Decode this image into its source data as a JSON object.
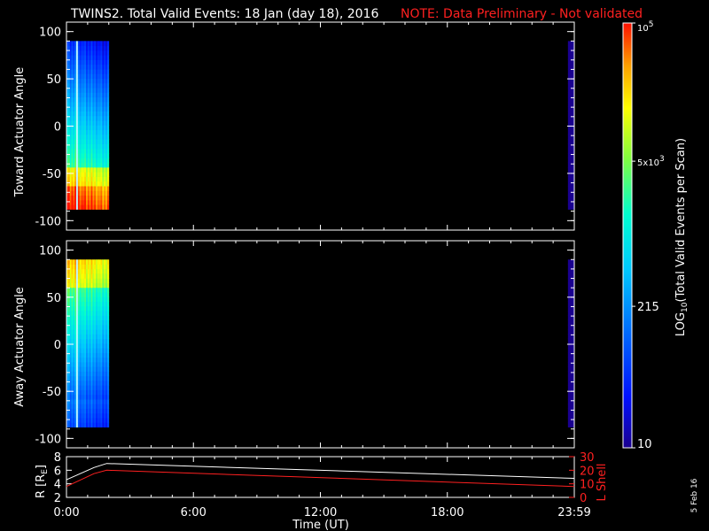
{
  "title": {
    "main": "TWINS2. Total Valid Events: 18 Jan (day  18), 2016",
    "note": "NOTE: Data Preliminary - Not validated"
  },
  "side_date": "5 Feb 16",
  "colors": {
    "note": "#ff2020",
    "r_line": "#ffffff",
    "lshell_line": "#ff2020"
  },
  "chart_data": [
    {
      "type": "heatmap",
      "ylabel": "Toward Actuator Angle",
      "ylim": [
        -110,
        110
      ],
      "yticks": [
        100,
        50,
        0,
        -50,
        -100
      ],
      "xlim": [
        0,
        24
      ],
      "data_time_ranges": [
        [
          0,
          2.0
        ],
        [
          23.7,
          24
        ]
      ],
      "angle_range": [
        -88,
        90
      ],
      "profile": "toward"
    },
    {
      "type": "heatmap",
      "ylabel": "Away Actuator Angle",
      "ylim": [
        -110,
        110
      ],
      "yticks": [
        100,
        50,
        0,
        -50,
        -100
      ],
      "xlim": [
        0,
        24
      ],
      "data_time_ranges": [
        [
          0,
          2.0
        ],
        [
          23.7,
          24
        ]
      ],
      "angle_range": [
        -88,
        90
      ],
      "profile": "away"
    },
    {
      "type": "line",
      "xlabel": "Time (UT)",
      "xticks": [
        "0:00",
        "6:00",
        "12:00",
        "18:00",
        "23:59"
      ],
      "xtick_values": [
        0,
        6,
        12,
        18,
        24
      ],
      "ylabel_left": "R [R",
      "ylabel_left_sub": "E",
      "ylabel_left_tail": "]",
      "ylim_left": [
        2,
        8
      ],
      "yticks_left": [
        8,
        6,
        4,
        2
      ],
      "ylabel_right": "L Shell",
      "ylim_right": [
        0,
        30
      ],
      "yticks_right": [
        30,
        20,
        10,
        0
      ],
      "series": [
        {
          "axis": "left",
          "x": [
            0,
            1.3,
            1.9,
            24
          ],
          "y": [
            4.6,
            6.4,
            7.0,
            4.8
          ]
        },
        {
          "axis": "left",
          "x": [
            0,
            1.3,
            1.9,
            24
          ],
          "y": [
            3.6,
            5.5,
            6.0,
            3.6
          ]
        }
      ]
    }
  ],
  "colorbar": {
    "label_prefix": "LOG",
    "label_sub": "10",
    "label_suffix": "(Total Valid Events per Scan)",
    "ticks": [
      {
        "text": "10",
        "value": 10
      },
      {
        "text": "215",
        "value": 215
      },
      {
        "base": "5x10",
        "sup": "3",
        "value": 5000
      },
      {
        "base": "10",
        "sup": "5",
        "value": 100000
      }
    ],
    "range": [
      10,
      100000
    ],
    "scale": "log"
  }
}
